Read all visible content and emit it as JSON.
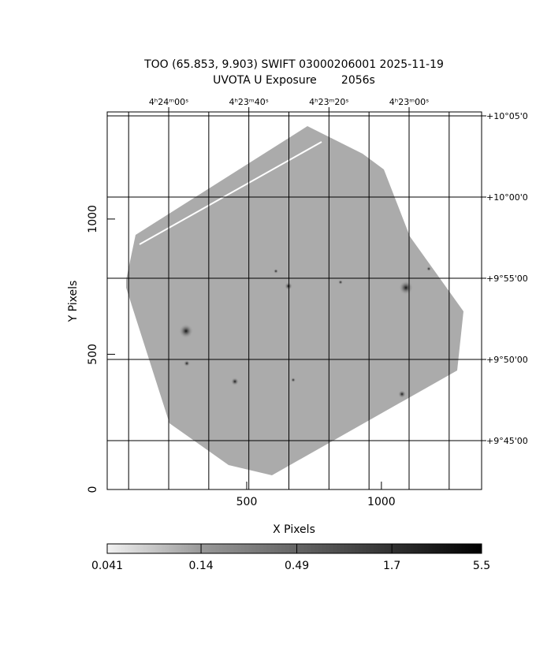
{
  "chart_data": {
    "type": "image",
    "title": "TOO (65.853, 9.903) SWIFT 03000206001 2025-11-19",
    "subtitle": "UVOTA U Exposure       2056s",
    "x_label": "X Pixels",
    "y_label": "Y Pixels",
    "xlim": [
      -18,
      1372
    ],
    "ylim": [
      0,
      1396
    ],
    "xticks": [
      500,
      1000
    ],
    "yticks": [
      0,
      500,
      1000
    ],
    "x2lim": [
      15855.35,
      15761.9
    ],
    "x2grid": [
      15850,
      15840,
      15830,
      15820,
      15810,
      15800,
      15790,
      15780,
      15770
    ],
    "x2ticks": [
      {
        "value": 15840,
        "label": "4ʰ24ᵐ00ˢ"
      },
      {
        "value": 15820,
        "label": "4ʰ23ᵐ40ˢ"
      },
      {
        "value": 15800,
        "label": "4ʰ23ᵐ20ˢ"
      },
      {
        "value": 15780,
        "label": "4ʰ23ᵐ00ˢ"
      }
    ],
    "y2lim": [
      581.99,
      605.24
    ],
    "y2ticks": [
      {
        "value": 605,
        "label": "+10°05'0"
      },
      {
        "value": 600,
        "label": "+10°00'0"
      },
      {
        "value": 595,
        "label": "+9°55'00"
      },
      {
        "value": 590,
        "label": "+9°50'00"
      },
      {
        "value": 585,
        "label": "+9°45'00"
      }
    ],
    "colorbar": {
      "log": true,
      "ticks": [
        0.041,
        0.14,
        0.49,
        1.7,
        5.5
      ]
    }
  }
}
